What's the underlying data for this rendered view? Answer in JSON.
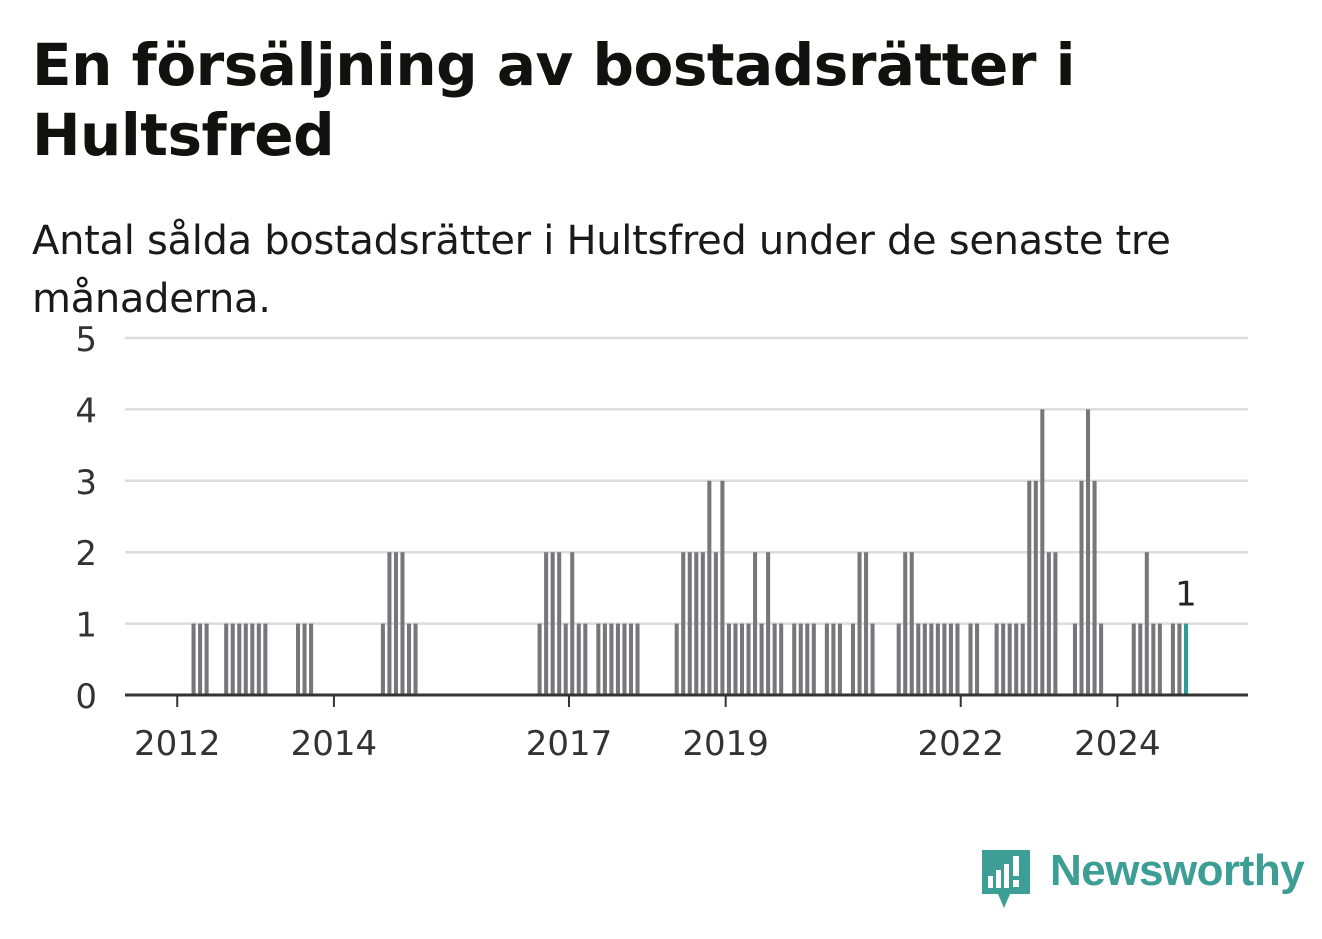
{
  "title": "En försäljning av bostadsrätter i Hultsfred",
  "subtitle": "Antal sålda bostadsrätter i Hultsfred under de senaste tre månaderna.",
  "brand": {
    "name": "Newsworthy",
    "icon": "newsworthy-logo-icon",
    "color": "#3d9e95"
  },
  "chart_data": {
    "type": "bar",
    "title": "En försäljning av bostadsrätter i Hultsfred",
    "subtitle": "Antal sålda bostadsrätter i Hultsfred under de senaste tre månaderna.",
    "xlabel": "",
    "ylabel": "",
    "ylim": [
      0,
      5
    ],
    "yticks": [
      0,
      1,
      2,
      3,
      4,
      5
    ],
    "xlim": [
      "2011-05",
      "2025-09"
    ],
    "xticks": [
      {
        "label": "2012",
        "date": "2012-01"
      },
      {
        "label": "2014",
        "date": "2014-01"
      },
      {
        "label": "2017",
        "date": "2017-01"
      },
      {
        "label": "2019",
        "date": "2019-01"
      },
      {
        "label": "2022",
        "date": "2022-01"
      },
      {
        "label": "2024",
        "date": "2024-01"
      }
    ],
    "grid": true,
    "bar_color": "#77767b",
    "highlight_color": "#2a9d98",
    "highlight_label": "1",
    "data": [
      [
        "2012-03",
        1
      ],
      [
        "2012-04",
        1
      ],
      [
        "2012-05",
        1
      ],
      [
        "2012-08",
        1
      ],
      [
        "2012-09",
        1
      ],
      [
        "2012-10",
        1
      ],
      [
        "2012-11",
        1
      ],
      [
        "2012-12",
        1
      ],
      [
        "2013-01",
        1
      ],
      [
        "2013-02",
        1
      ],
      [
        "2013-07",
        1
      ],
      [
        "2013-08",
        1
      ],
      [
        "2013-09",
        1
      ],
      [
        "2014-08",
        1
      ],
      [
        "2014-09",
        2
      ],
      [
        "2014-10",
        2
      ],
      [
        "2014-11",
        2
      ],
      [
        "2014-12",
        1
      ],
      [
        "2015-01",
        1
      ],
      [
        "2016-08",
        1
      ],
      [
        "2016-09",
        2
      ],
      [
        "2016-10",
        2
      ],
      [
        "2016-11",
        2
      ],
      [
        "2016-12",
        1
      ],
      [
        "2017-01",
        2
      ],
      [
        "2017-02",
        1
      ],
      [
        "2017-03",
        1
      ],
      [
        "2017-05",
        1
      ],
      [
        "2017-06",
        1
      ],
      [
        "2017-07",
        1
      ],
      [
        "2017-08",
        1
      ],
      [
        "2017-09",
        1
      ],
      [
        "2017-10",
        1
      ],
      [
        "2017-11",
        1
      ],
      [
        "2018-05",
        1
      ],
      [
        "2018-06",
        2
      ],
      [
        "2018-07",
        2
      ],
      [
        "2018-08",
        2
      ],
      [
        "2018-09",
        2
      ],
      [
        "2018-10",
        3
      ],
      [
        "2018-11",
        2
      ],
      [
        "2018-12",
        3
      ],
      [
        "2019-01",
        1
      ],
      [
        "2019-02",
        1
      ],
      [
        "2019-03",
        1
      ],
      [
        "2019-04",
        1
      ],
      [
        "2019-05",
        2
      ],
      [
        "2019-06",
        1
      ],
      [
        "2019-07",
        2
      ],
      [
        "2019-08",
        1
      ],
      [
        "2019-09",
        1
      ],
      [
        "2019-11",
        1
      ],
      [
        "2019-12",
        1
      ],
      [
        "2020-01",
        1
      ],
      [
        "2020-02",
        1
      ],
      [
        "2020-04",
        1
      ],
      [
        "2020-05",
        1
      ],
      [
        "2020-06",
        1
      ],
      [
        "2020-08",
        1
      ],
      [
        "2020-09",
        2
      ],
      [
        "2020-10",
        2
      ],
      [
        "2020-11",
        1
      ],
      [
        "2021-03",
        1
      ],
      [
        "2021-04",
        2
      ],
      [
        "2021-05",
        2
      ],
      [
        "2021-06",
        1
      ],
      [
        "2021-07",
        1
      ],
      [
        "2021-08",
        1
      ],
      [
        "2021-09",
        1
      ],
      [
        "2021-10",
        1
      ],
      [
        "2021-11",
        1
      ],
      [
        "2021-12",
        1
      ],
      [
        "2022-02",
        1
      ],
      [
        "2022-03",
        1
      ],
      [
        "2022-06",
        1
      ],
      [
        "2022-07",
        1
      ],
      [
        "2022-08",
        1
      ],
      [
        "2022-09",
        1
      ],
      [
        "2022-10",
        1
      ],
      [
        "2022-11",
        3
      ],
      [
        "2022-12",
        3
      ],
      [
        "2023-01",
        4
      ],
      [
        "2023-02",
        2
      ],
      [
        "2023-03",
        2
      ],
      [
        "2023-06",
        1
      ],
      [
        "2023-07",
        3
      ],
      [
        "2023-08",
        4
      ],
      [
        "2023-09",
        3
      ],
      [
        "2023-10",
        1
      ],
      [
        "2024-03",
        1
      ],
      [
        "2024-04",
        1
      ],
      [
        "2024-05",
        2
      ],
      [
        "2024-06",
        1
      ],
      [
        "2024-07",
        1
      ],
      [
        "2024-09",
        1
      ],
      [
        "2024-10",
        1
      ],
      [
        "2024-11",
        1
      ]
    ]
  }
}
